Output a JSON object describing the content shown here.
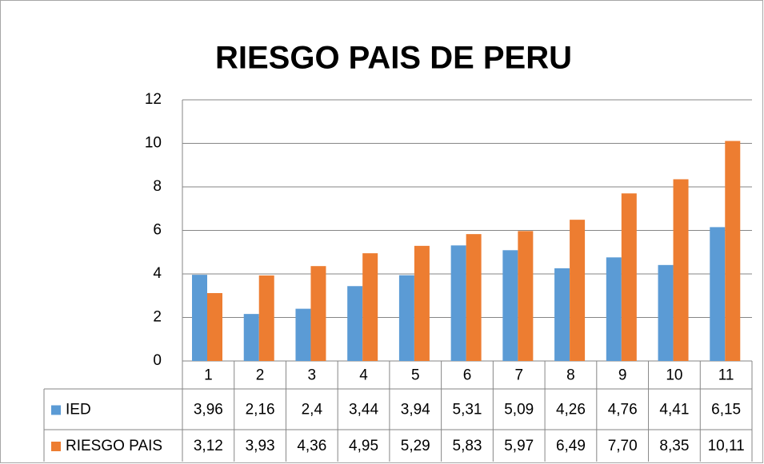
{
  "chart_data": {
    "type": "bar",
    "title": "RIESGO PAIS DE PERU",
    "categories": [
      "1",
      "2",
      "3",
      "4",
      "5",
      "6",
      "7",
      "8",
      "9",
      "10",
      "11"
    ],
    "series": [
      {
        "name": "IED",
        "color": "#5b9bd5",
        "values": [
          3.96,
          2.16,
          2.4,
          3.44,
          3.94,
          5.31,
          5.09,
          4.26,
          4.76,
          4.41,
          6.15
        ],
        "value_labels": [
          "3,96",
          "2,16",
          "2,4",
          "3,44",
          "3,94",
          "5,31",
          "5,09",
          "4,26",
          "4,76",
          "4,41",
          "6,15"
        ]
      },
      {
        "name": "RIESGO PAIS",
        "color": "#ed7d31",
        "values": [
          3.12,
          3.93,
          4.36,
          4.95,
          5.29,
          5.83,
          5.97,
          6.49,
          7.7,
          8.35,
          10.11
        ],
        "value_labels": [
          "3,12",
          "3,93",
          "4,36",
          "4,95",
          "5,29",
          "5,83",
          "5,97",
          "6,49",
          "7,70",
          "8,35",
          "10,11"
        ]
      }
    ],
    "ylim": [
      0,
      12
    ],
    "yticks": [
      0,
      2,
      4,
      6,
      8,
      10,
      12
    ],
    "grid": true
  }
}
